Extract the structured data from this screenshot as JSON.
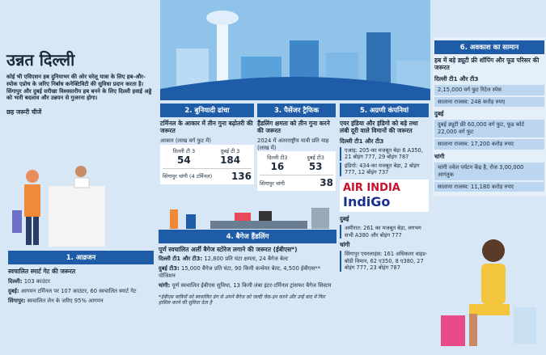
{
  "title": "उन्नत दिल्ली",
  "intro": "कोई भी एविएशन हब दुनियाभर की ओर घरेलू यात्रा के लिए हब-और-स्पोक एप्रोच के जरिए निर्बाध कनेक्टिविटी की सुविधा प्रदान करता है। सिंगापुर और दुबई सरीखा विश्वस्तरीय हब बनने के लिए दिल्ली हवाई अड्डे को भारी बदलाव और उन्नयन से गुजरना होगा।",
  "subheading": "छह जरूरी चीजें",
  "s1": {
    "header": "1. आव्रजन",
    "need": "स्वचालित स्मार्ट गेट की जरूरत",
    "items": [
      {
        "label": "दिल्ली:",
        "text": " 103 काउंटर"
      },
      {
        "label": "दुबई:",
        "text": " आगमन टर्मिनल पर 107 काउंटर, 60 स्वचालित स्मार्ट गेट"
      },
      {
        "label": "सिंगापुर:",
        "text": " स्वचालित लेन के जरिए 95% आगमन"
      }
    ]
  },
  "s2": {
    "header": "2. बुनियादी ढांचा",
    "need": "टर्मिनल के आकार में तीन गुना बढ़ोतरी की जरूरत",
    "caption": "आकार (लाख वर्ग फुट में)",
    "stats": [
      {
        "label": "दिल्ली टी 3",
        "value": 54
      },
      {
        "label": "दुबई टी 3",
        "value": 184
      },
      {
        "label": "सिंगापुर चांगी (4 टर्मिनल)",
        "value": 136
      }
    ]
  },
  "s3": {
    "header": "3. पैसेंजर ट्रैफिक",
    "need": "हैंडलिंग क्षमता को तीन गुना करने की जरूरत",
    "caption": "2024 में अंतरराष्ट्रीय यात्री प्रति माह (लाख में)",
    "stats": [
      {
        "label": "दिल्ली टी3",
        "value": 16
      },
      {
        "label": "दुबई टी3",
        "value": 53
      },
      {
        "label": "सिंगापुर चांगी",
        "value": 38
      }
    ]
  },
  "s4": {
    "header": "4. बैगेज हैंडलिंग",
    "need": "पूर्ण स्वचालित अर्ली बैगेज स्टोरेज लगाने की जरूरत (ईबीएस*)",
    "items": [
      {
        "label": "दिल्ली टी1 और टी3:",
        "text": " 12,800 प्रति घंटा क्षमता, 24 बैगेज बेल्ट"
      },
      {
        "label": "दुबई टी3:",
        "text": " 15,000 बैगेज प्रति घंटा, 90 किमी कन्वेयर बेल्ट, 4,500 ईबीएस** पोजिशन"
      },
      {
        "label": "चांगी:",
        "text": " पूर्ण स्वचालित ईबीएस सुविधा, 13 किमी लंबा इंटर-टर्मिनल ट्रांसफर बैगेज सिस्टम"
      }
    ],
    "footnote": "*ईबीएस यात्रियों को स्वचालित ढंग से अपने बैगेज को जल्दी चेक-इन करने और उन्हें बाद में फिर हासिल करने की सुविधा देता है"
  },
  "s5": {
    "header": "5. अग्रणी कंपनियां",
    "need": "एयर इंडिया और इंडिगो को बड़े तथा लंबी दूरी वाले विमानों की जरूरत",
    "delhi": {
      "label": "दिल्ली टी1 और टी3",
      "items": [
        "एआइ: 205-का मजबूत बेड़ा 6 A350, 21 बोइंग 777, 29 बोइंग 787",
        "इंडिगो: 434-का मजबूत बेड़ा, 2 बोइंग 777, 12 बोइंग 737"
      ]
    },
    "logos": [
      "AIR INDIA",
      "IndiGo"
    ],
    "dubai": {
      "label": "दुबई",
      "items": [
        "अमीरात: 261 का मजबूत बेड़ा, लगभग सभी A380 और बोइंग 777"
      ]
    },
    "changi": {
      "label": "चांगी",
      "items": [
        "सिंगापुर एयरलाइंस: 161 अधिकतर वाइड-बॉडी विमान, 62 ए350, 8 ए380, 27 बोइंग 777, 23 बोइंग 787"
      ]
    }
  },
  "s6": {
    "header": "6. अवकाश का सामान",
    "need": "हब में बड़े ड्यूटी फ्री शॉपिंग और फूड परिसर की जरूरत",
    "groups": [
      {
        "label": "दिल्ली टी1 और टी3",
        "items": [
          "2,15,000 वर्ग फुट रिटेल स्पेस",
          "सालाना राजस्व: 248 करोड़ रुपए"
        ]
      },
      {
        "label": "दुबई",
        "items": [
          "दुबई ड्यूटी फ्री 60,000 वर्ग फुट, फूड कोर्ट 22,000 वर्ग फुट",
          "सालाना राजस्व: 17,200 करोड़ रुपए"
        ]
      },
      {
        "label": "चांगी",
        "items": [
          "चांगी ज्वेल पर्यटन केंद्र है, रोज 3,00,000 आगंतुक",
          "सालाना राजस्व: 11,180 करोड़ रुपए"
        ]
      }
    ]
  }
}
